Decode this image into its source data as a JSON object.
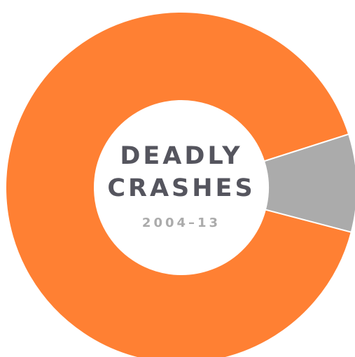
{
  "chart_data": {
    "type": "donut",
    "title": "DEADLY CRASHES",
    "subtitle": "2004–13",
    "values": [
      91,
      9
    ],
    "colors": [
      "#ff8033",
      "#ababab"
    ]
  }
}
